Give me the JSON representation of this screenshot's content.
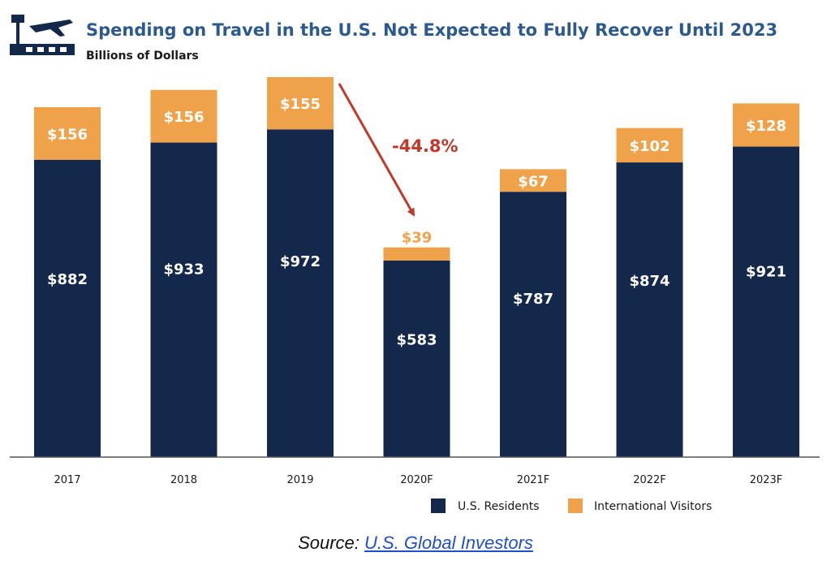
{
  "header": {
    "title": "Spending on Travel in the U.S. Not Expected to Fully Recover Until 2023",
    "subtitle": "Billions of Dollars",
    "icon": "airport-icon"
  },
  "chart_data": {
    "type": "bar",
    "stacked": true,
    "categories": [
      "2017",
      "2018",
      "2019",
      "2020F",
      "2021F",
      "2022F",
      "2023F"
    ],
    "series": [
      {
        "name": "U.S. Residents",
        "values": [
          882,
          933,
          972,
          583,
          787,
          874,
          921
        ],
        "color": "#14284b",
        "labels": [
          "$882",
          "$933",
          "$972",
          "$583",
          "$787",
          "$874",
          "$921"
        ]
      },
      {
        "name": "International Visitors",
        "values": [
          156,
          156,
          155,
          39,
          67,
          102,
          128
        ],
        "color": "#f0a24a",
        "labels": [
          "$156",
          "$156",
          "$155",
          "$39",
          "$67",
          "$102",
          "$128"
        ]
      }
    ],
    "title": "Spending on Travel in the U.S. Not Expected to Fully Recover Until 2023",
    "ylabel": "Billions of Dollars",
    "ylim": [
      0,
      1160
    ],
    "grid": false,
    "legend": "bottom-right",
    "annotation": {
      "text": "-44.8%",
      "color": "#c0392b",
      "from": "2019",
      "to": "2020F"
    }
  },
  "source": {
    "prefix": "Source:",
    "link_text": "U.S. Global Investors"
  }
}
